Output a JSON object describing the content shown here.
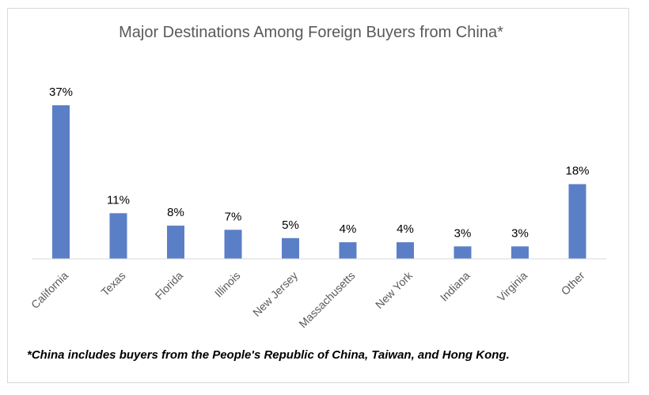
{
  "colors": {
    "bar": "#5b7fc7",
    "axis": "#d9d9d9",
    "label": "#000000",
    "category": "#595959"
  },
  "chart_data": {
    "type": "bar",
    "title": "Major Destinations Among Foreign Buyers from China*",
    "xlabel": "",
    "ylabel": "",
    "ylim": [
      0,
      40
    ],
    "grid": false,
    "legend": "none",
    "categories": [
      "California",
      "Texas",
      "Florida",
      "Illinois",
      "New Jersey",
      "Massachusetts",
      "New York",
      "Indiana",
      "Virginia",
      "Other"
    ],
    "values": [
      37,
      11,
      8,
      7,
      5,
      4,
      4,
      3,
      3,
      18
    ],
    "data_labels": [
      "37%",
      "11%",
      "8%",
      "7%",
      "5%",
      "4%",
      "4%",
      "3%",
      "3%",
      "18%"
    ]
  },
  "footnote": "*China includes buyers from the People's Republic of China, Taiwan, and Hong Kong."
}
